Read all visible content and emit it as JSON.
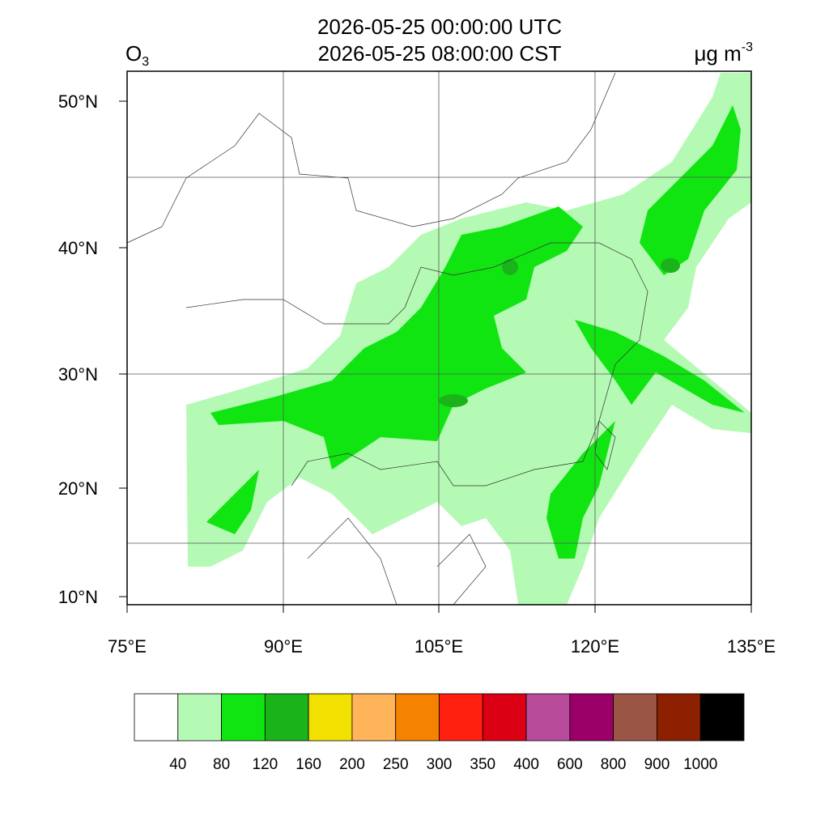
{
  "title": [
    "2026-05-25 00:00:00 UTC",
    "2026-05-25 08:00:00 CST"
  ],
  "variable": {
    "name": "O",
    "subscript": "3"
  },
  "units": {
    "text": "μg m",
    "superscript": "-3"
  },
  "lon_ticks": [
    "75°E",
    "90°E",
    "105°E",
    "120°E",
    "135°E"
  ],
  "lat_ticks": [
    "50°N",
    "40°N",
    "30°N",
    "20°N",
    "10°N"
  ],
  "colorbar": {
    "colors": [
      "#ffffff",
      "#b4fab4",
      "#11e511",
      "#1ab41a",
      "#f2e100",
      "#ffb45a",
      "#f58200",
      "#ff2010",
      "#dc0014",
      "#b94b9b",
      "#9b0069",
      "#9b5544",
      "#8c2000",
      "#000000"
    ],
    "labels": [
      40,
      80,
      120,
      160,
      200,
      250,
      300,
      350,
      400,
      600,
      800,
      900,
      1000
    ]
  }
}
